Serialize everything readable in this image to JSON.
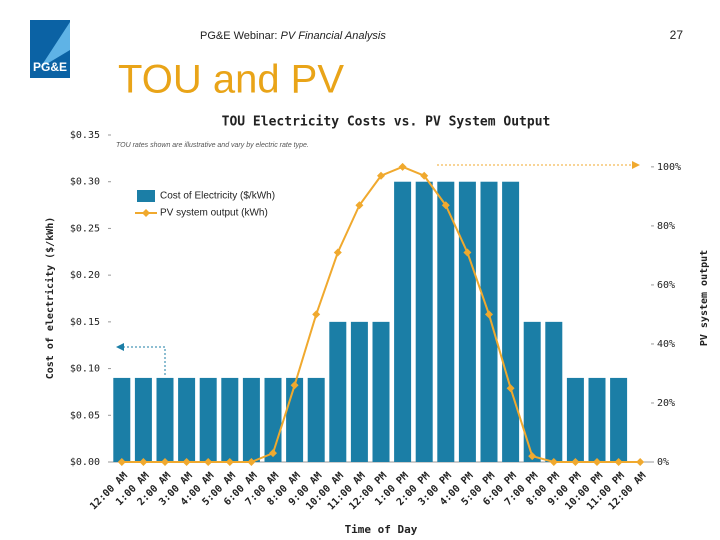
{
  "header": {
    "title_plain": "PG&E Webinar: ",
    "title_italic": "PV Financial Analysis",
    "page": "27",
    "logo": "PG&E"
  },
  "slide_title": "TOU and PV",
  "chart_data": {
    "type": "bar",
    "title": "TOU Electricity Costs vs. PV System Output",
    "annotation": "TOU rates shown are illustrative and vary by electric rate type.",
    "x_label": "Time of Day",
    "y_label": "Cost of electricity ($/kWh)",
    "y2_label": "PV system output",
    "categories": [
      "12:00 AM",
      "1:00 AM",
      "2:00 AM",
      "3:00 AM",
      "4:00 AM",
      "5:00 AM",
      "6:00 AM",
      "7:00 AM",
      "8:00 AM",
      "9:00 AM",
      "10:00 AM",
      "11:00 AM",
      "12:00 PM",
      "1:00 PM",
      "2:00 PM",
      "3:00 PM",
      "4:00 PM",
      "5:00 PM",
      "6:00 PM",
      "7:00 PM",
      "8:00 PM",
      "9:00 PM",
      "10:00 PM",
      "11:00 PM",
      "12:00 AM"
    ],
    "series": [
      {
        "name": "Cost of Electricity ($/kWh)",
        "type": "bar",
        "color": "#1b7ea6",
        "values": [
          0.09,
          0.09,
          0.09,
          0.09,
          0.09,
          0.09,
          0.09,
          0.09,
          0.09,
          0.09,
          0.15,
          0.15,
          0.15,
          0.3,
          0.3,
          0.3,
          0.3,
          0.3,
          0.3,
          0.15,
          0.15,
          0.09,
          0.09,
          0.09,
          null
        ]
      },
      {
        "name": "PV system output (kWh)",
        "type": "line",
        "axis": "y2",
        "color": "#f0a92e",
        "values": [
          0,
          0,
          0,
          0,
          0,
          0,
          0,
          3,
          26,
          50,
          71,
          87,
          97,
          100,
          97,
          87,
          71,
          50,
          25,
          2,
          0,
          0,
          0,
          0,
          0
        ]
      }
    ],
    "ylim": [
      0,
      0.35
    ],
    "yticks": [
      {
        "value": 0,
        "label": "$0.00"
      },
      {
        "value": 0.05,
        "label": "$0.05"
      },
      {
        "value": 0.1,
        "label": "$0.10"
      },
      {
        "value": 0.15,
        "label": "$0.15"
      },
      {
        "value": 0.2,
        "label": "$0.20"
      },
      {
        "value": 0.25,
        "label": "$0.25"
      },
      {
        "value": 0.3,
        "label": "$0.30"
      },
      {
        "value": 0.35,
        "label": "$0.35"
      }
    ],
    "y2lim": [
      0,
      110.8
    ],
    "y2ticks": [
      {
        "value": 0,
        "label": "0%"
      },
      {
        "value": 20,
        "label": "20%"
      },
      {
        "value": 40,
        "label": "40%"
      },
      {
        "value": 60,
        "label": "60%"
      },
      {
        "value": 80,
        "label": "80%"
      },
      {
        "value": 100,
        "label": "100%"
      }
    ],
    "legend": "upper left"
  }
}
